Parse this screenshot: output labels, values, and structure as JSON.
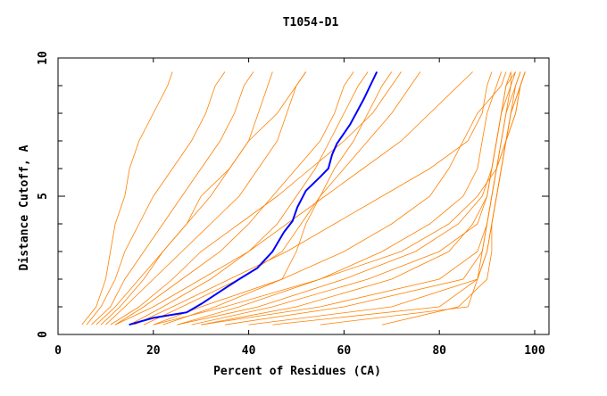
{
  "chart_data": {
    "type": "line",
    "title": "T1054-D1",
    "xlabel": "Percent of Residues (CA)",
    "ylabel": "Distance Cutoff, A",
    "xlim": [
      0,
      103
    ],
    "ylim": [
      0,
      10
    ],
    "xticks": [
      0,
      20,
      40,
      60,
      80,
      100
    ],
    "yticks": [
      0,
      5,
      10
    ],
    "grid": false,
    "colors": {
      "others": "#ff8000",
      "highlight": "#0000ff"
    },
    "y_levels": [
      0.35,
      1,
      2,
      3,
      4,
      5,
      6,
      7,
      8,
      9,
      9.5
    ],
    "other_series_x": [
      [
        5,
        8,
        10,
        11,
        12,
        14,
        15,
        17,
        20,
        23,
        24
      ],
      [
        6,
        9,
        12,
        14,
        17,
        20,
        24,
        28,
        31,
        33,
        35
      ],
      [
        7,
        11,
        14,
        18,
        22,
        26,
        30,
        34,
        37,
        39,
        41
      ],
      [
        8,
        12,
        17,
        22,
        27,
        32,
        36,
        40,
        42,
        44,
        45
      ],
      [
        10,
        14,
        20,
        26,
        32,
        38,
        42,
        46,
        48,
        50,
        52
      ],
      [
        12,
        18,
        26,
        34,
        40,
        45,
        50,
        55,
        58,
        60,
        62
      ],
      [
        15,
        22,
        32,
        40,
        46,
        50,
        54,
        57,
        60,
        63,
        65
      ],
      [
        18,
        26,
        38,
        47,
        51,
        55,
        58,
        62,
        65,
        68,
        70
      ],
      [
        20,
        30,
        47,
        50,
        52,
        55,
        60,
        65,
        70,
        74,
        76
      ],
      [
        22,
        33,
        47,
        60,
        70,
        78,
        82,
        85,
        88,
        93,
        94
      ],
      [
        25,
        38,
        55,
        72,
        82,
        88,
        92,
        93,
        94,
        95,
        95
      ],
      [
        25,
        42,
        60,
        75,
        84,
        89,
        91,
        92,
        93,
        94,
        95
      ],
      [
        28,
        45,
        65,
        80,
        88,
        90,
        91,
        92,
        93,
        94,
        96
      ],
      [
        30,
        50,
        70,
        82,
        87,
        90,
        91,
        92,
        93,
        95,
        96
      ],
      [
        30,
        55,
        80,
        88,
        90,
        91,
        92,
        93,
        94,
        96,
        97
      ],
      [
        35,
        60,
        85,
        89,
        90,
        91,
        92,
        94,
        95,
        96,
        97
      ],
      [
        40,
        70,
        88,
        89,
        90,
        91,
        92,
        94,
        95,
        97,
        98
      ],
      [
        45,
        80,
        88,
        90,
        91,
        92,
        93,
        94,
        96,
        97,
        98
      ],
      [
        55,
        86,
        88,
        90,
        91,
        92,
        93,
        94,
        95,
        97,
        98
      ],
      [
        68,
        84,
        90,
        91,
        91,
        92,
        93,
        94,
        96,
        97,
        98
      ],
      [
        20,
        35,
        55,
        68,
        78,
        85,
        88,
        89,
        90,
        92,
        93
      ],
      [
        16,
        24,
        36,
        48,
        58,
        68,
        78,
        86,
        89,
        90,
        91
      ],
      [
        12,
        20,
        30,
        40,
        48,
        56,
        64,
        72,
        78,
        84,
        87
      ],
      [
        11,
        17,
        24,
        30,
        38,
        46,
        53,
        60,
        66,
        70,
        72
      ],
      [
        9,
        13,
        18,
        22,
        27,
        30,
        36,
        40,
        46,
        50,
        52
      ]
    ],
    "highlight_series": {
      "x": [
        14.9,
        20,
        27,
        30,
        34.4,
        38,
        41.8,
        45,
        47.4,
        49.2,
        50.2,
        52,
        55,
        56.7,
        57.5,
        58.5,
        61.3,
        64.1,
        66.9
      ],
      "y": [
        0.35,
        0.6,
        0.8,
        1.1,
        1.6,
        2.0,
        2.4,
        3.0,
        3.7,
        4.1,
        4.6,
        5.2,
        5.7,
        6.0,
        6.5,
        6.9,
        7.6,
        8.5,
        9.5
      ]
    }
  }
}
